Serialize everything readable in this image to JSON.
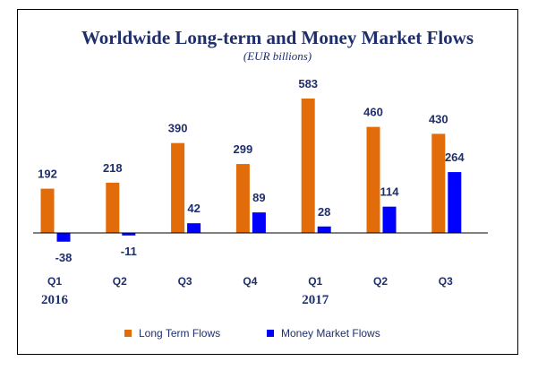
{
  "chart_data": {
    "type": "bar",
    "title": "Worldwide Long-term and Money Market Flows",
    "subtitle": "(EUR billions)",
    "categories": [
      "Q1",
      "Q2",
      "Q3",
      "Q4",
      "Q1",
      "Q2",
      "Q3"
    ],
    "year_labels": [
      {
        "label": "2016",
        "category_index": 0
      },
      {
        "label": "2017",
        "category_index": 4
      }
    ],
    "series": [
      {
        "name": "Long Term Flows",
        "color": "#e36c0a",
        "values": [
          192,
          218,
          390,
          299,
          583,
          460,
          430
        ],
        "labels": [
          "192",
          "218",
          "390",
          "299",
          "583",
          "460",
          "430"
        ]
      },
      {
        "name": "Money Market Flows",
        "color": "#0000ff",
        "values": [
          -38,
          -11,
          42,
          89,
          28,
          114,
          264
        ],
        "labels": [
          "-38",
          "-11",
          "42",
          "89",
          "28",
          "114",
          "264"
        ]
      }
    ],
    "legend_position": "bottom",
    "grid": false
  },
  "colors": {
    "title": "#1f2f6b",
    "labels": "#1f2f6b",
    "axis": "#000000"
  }
}
